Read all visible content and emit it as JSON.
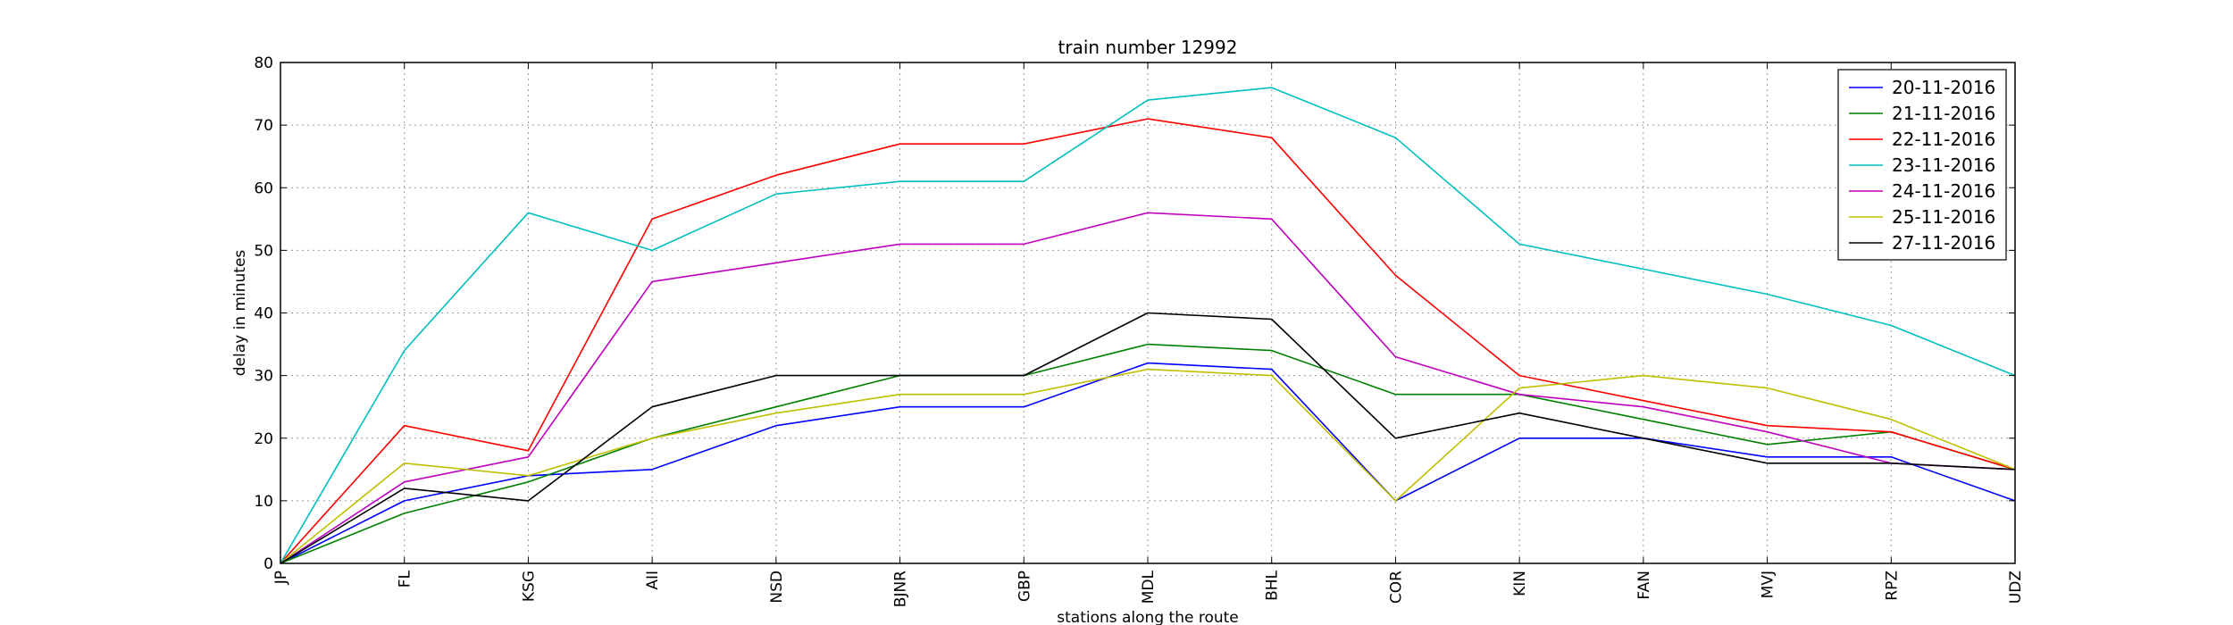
{
  "chart_data": {
    "type": "line",
    "title": "train number 12992",
    "xlabel": "stations along the route",
    "ylabel": "delay in minutes",
    "ylim": [
      0,
      80
    ],
    "yticks": [
      0,
      10,
      20,
      30,
      40,
      50,
      60,
      70,
      80
    ],
    "grid": true,
    "legend_position": "top-right",
    "categories": [
      "JP",
      "FL",
      "KSG",
      "AII",
      "NSD",
      "BJNR",
      "GBP",
      "MDL",
      "BHL",
      "COR",
      "KIN",
      "FAN",
      "MVJ",
      "RPZ",
      "UDZ"
    ],
    "series": [
      {
        "name": "20-11-2016",
        "color": "#0000ff",
        "values": [
          0,
          10,
          14,
          15,
          22,
          25,
          25,
          32,
          31,
          10,
          20,
          20,
          17,
          17,
          10
        ]
      },
      {
        "name": "21-11-2016",
        "color": "#008000",
        "values": [
          0,
          8,
          13,
          20,
          25,
          30,
          30,
          35,
          34,
          27,
          27,
          23,
          19,
          21,
          15
        ]
      },
      {
        "name": "22-11-2016",
        "color": "#ff0000",
        "values": [
          0,
          22,
          18,
          55,
          62,
          67,
          67,
          71,
          68,
          46,
          30,
          26,
          22,
          21,
          15
        ]
      },
      {
        "name": "23-11-2016",
        "color": "#00bfbf",
        "values": [
          0,
          34,
          56,
          50,
          59,
          61,
          61,
          74,
          76,
          68,
          51,
          47,
          43,
          38,
          30
        ]
      },
      {
        "name": "24-11-2016",
        "color": "#bf00bf",
        "values": [
          0,
          13,
          17,
          45,
          48,
          51,
          51,
          56,
          55,
          33,
          27,
          25,
          21,
          16,
          15
        ]
      },
      {
        "name": "25-11-2016",
        "color": "#bfbf00",
        "values": [
          0,
          16,
          14,
          20,
          24,
          27,
          27,
          31,
          30,
          10,
          28,
          30,
          28,
          23,
          15
        ]
      },
      {
        "name": "27-11-2016",
        "color": "#000000",
        "values": [
          0,
          12,
          10,
          25,
          30,
          30,
          30,
          40,
          39,
          20,
          24,
          20,
          16,
          16,
          15
        ]
      }
    ]
  }
}
